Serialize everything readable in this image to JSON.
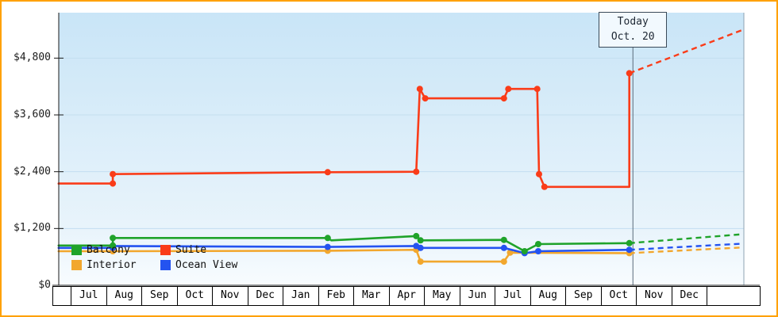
{
  "frame": {
    "border_color": "#ffa100"
  },
  "chart_data": {
    "type": "line",
    "ylim": [
      0,
      5760
    ],
    "y_ticks": [
      {
        "value": 0,
        "label": "$0"
      },
      {
        "value": 1200,
        "label": "$1,200"
      },
      {
        "value": 2400,
        "label": "$2,400"
      },
      {
        "value": 3600,
        "label": "$3,600"
      },
      {
        "value": 4800,
        "label": "$4,800"
      }
    ],
    "months": [
      "Jul",
      "Aug",
      "Sep",
      "Oct",
      "Nov",
      "Dec",
      "Jan",
      "Feb",
      "Mar",
      "Apr",
      "May",
      "Jun",
      "Jul",
      "Aug",
      "Sep",
      "Oct",
      "Nov",
      "Dec"
    ],
    "today": {
      "line1": "Today",
      "line2": "Oct. 20",
      "month_position": 15.5
    },
    "legend": [
      {
        "label": "Balcony",
        "color": "#1fa32a"
      },
      {
        "label": "Suite",
        "color": "#fa3c19"
      },
      {
        "label": "Interior",
        "color": "#f2a72e"
      },
      {
        "label": "Ocean View",
        "color": "#2453f0"
      }
    ],
    "colors": {
      "axis": "#1a1a1a",
      "grid": "#c3def0",
      "today_line": "#5a6b7a",
      "plot_bg_top": "#c9e5f7",
      "plot_bg_mid": "#e9f4fb",
      "plot_bg_bottom": "#f8fcff",
      "plot_right_border": "#8fa3b3"
    },
    "series": [
      {
        "key": "interior",
        "name": "Interior",
        "color": "#f2a72e",
        "points": [
          [
            -0.4,
            720,
            0
          ],
          [
            1.1,
            720,
            1
          ],
          [
            7.05,
            730,
            1
          ],
          [
            9.5,
            750,
            1
          ],
          [
            9.62,
            500,
            1
          ],
          [
            11.93,
            500,
            1
          ],
          [
            12.1,
            690,
            1
          ],
          [
            15.4,
            680,
            1
          ]
        ],
        "projection": [
          [
            15.4,
            680
          ],
          [
            18.55,
            800
          ]
        ]
      },
      {
        "key": "ocean-view",
        "name": "Ocean View",
        "color": "#2453f0",
        "points": [
          [
            -0.4,
            790,
            0
          ],
          [
            1.1,
            790,
            1
          ],
          [
            1.1,
            830,
            1
          ],
          [
            7.05,
            810,
            1
          ],
          [
            9.5,
            830,
            1
          ],
          [
            9.62,
            790,
            1
          ],
          [
            11.93,
            790,
            1
          ],
          [
            12.5,
            680,
            1
          ],
          [
            12.88,
            720,
            1
          ],
          [
            15.4,
            750,
            1
          ]
        ],
        "projection": [
          [
            15.4,
            750
          ],
          [
            18.55,
            880
          ]
        ]
      },
      {
        "key": "balcony",
        "name": "Balcony",
        "color": "#1fa32a",
        "points": [
          [
            -0.4,
            840,
            0
          ],
          [
            1.1,
            840,
            1
          ],
          [
            1.1,
            1000,
            1
          ],
          [
            7.05,
            1000,
            1
          ],
          [
            7.15,
            950,
            0
          ],
          [
            9.5,
            1040,
            1
          ],
          [
            9.62,
            950,
            1
          ],
          [
            11.93,
            960,
            1
          ],
          [
            12.5,
            720,
            1
          ],
          [
            12.88,
            870,
            1
          ],
          [
            15.4,
            890,
            1
          ]
        ],
        "projection": [
          [
            15.4,
            890
          ],
          [
            18.55,
            1080
          ]
        ]
      },
      {
        "key": "suite",
        "name": "Suite",
        "color": "#fa3c19",
        "points": [
          [
            -0.4,
            2150,
            0
          ],
          [
            1.1,
            2150,
            1
          ],
          [
            1.1,
            2350,
            1
          ],
          [
            7.05,
            2390,
            1
          ],
          [
            9.5,
            2400,
            1
          ],
          [
            9.6,
            4150,
            1
          ],
          [
            9.75,
            3950,
            1
          ],
          [
            11.93,
            3950,
            1
          ],
          [
            12.05,
            4150,
            1
          ],
          [
            12.85,
            4150,
            1
          ],
          [
            12.9,
            2350,
            1
          ],
          [
            13.05,
            2080,
            1
          ],
          [
            15.4,
            2080,
            0
          ],
          [
            15.4,
            4480,
            1
          ]
        ],
        "projection": [
          [
            15.4,
            4480
          ],
          [
            18.55,
            5400
          ]
        ]
      }
    ]
  }
}
